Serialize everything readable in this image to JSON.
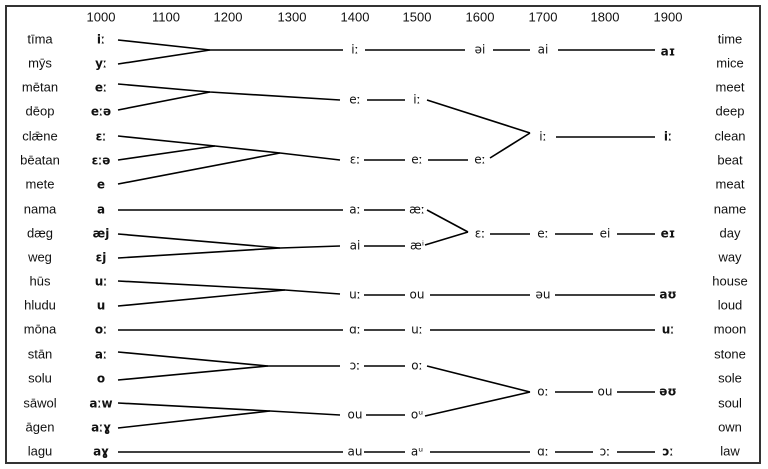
{
  "years": [
    "1000",
    "1100",
    "1200",
    "1300",
    "1400",
    "1500",
    "1600",
    "1700",
    "1800",
    "1900"
  ],
  "rows": [
    {
      "old": "tīma",
      "oe": "iː",
      "modern": "time"
    },
    {
      "old": "mȳs",
      "oe": "yː",
      "modern": "mice"
    },
    {
      "old": "mētan",
      "oe": "eː",
      "modern": "meet"
    },
    {
      "old": "dēop",
      "oe": "eːə",
      "modern": "deep"
    },
    {
      "old": "clǣne",
      "oe": "ɛː",
      "modern": "clean"
    },
    {
      "old": "bēatan",
      "oe": "ɛːə",
      "modern": "beat"
    },
    {
      "old": "mete",
      "oe": "e",
      "modern": "meat"
    },
    {
      "old": "nama",
      "oe": "a",
      "modern": "name"
    },
    {
      "old": "dæg",
      "oe": "æj",
      "modern": "day"
    },
    {
      "old": "weg",
      "oe": "ɛj",
      "modern": "way"
    },
    {
      "old": "hūs",
      "oe": "uː",
      "modern": "house"
    },
    {
      "old": "hludu",
      "oe": "u",
      "modern": "loud"
    },
    {
      "old": "mōna",
      "oe": "oː",
      "modern": "moon"
    },
    {
      "old": "stān",
      "oe": "aː",
      "modern": "stone"
    },
    {
      "old": "solu",
      "oe": "o",
      "modern": "sole"
    },
    {
      "old": "sāwol",
      "oe": "aːw",
      "modern": "soul"
    },
    {
      "old": "āgen",
      "oe": "aːɣ",
      "modern": "own"
    },
    {
      "old": "lagu",
      "oe": "aɣ",
      "modern": "law"
    }
  ],
  "nodes": [
    "iː",
    "əi",
    "ai",
    "aɪ",
    "eː",
    "iː",
    "iː",
    "iː",
    "ɛː",
    "eː",
    "eː",
    "aː",
    "æː",
    "ai",
    "æⁱ",
    "ɛː",
    "eː",
    "ei",
    "eɪ",
    "uː",
    "ou",
    "əu",
    "aʊ",
    "ɑː",
    "uː",
    "uː",
    "ɔː",
    "oː",
    "ou",
    "oᵘ",
    "oː",
    "ou",
    "əʊ",
    "au",
    "aᵘ",
    "ɑː",
    "ɔː",
    "ɔː"
  ]
}
